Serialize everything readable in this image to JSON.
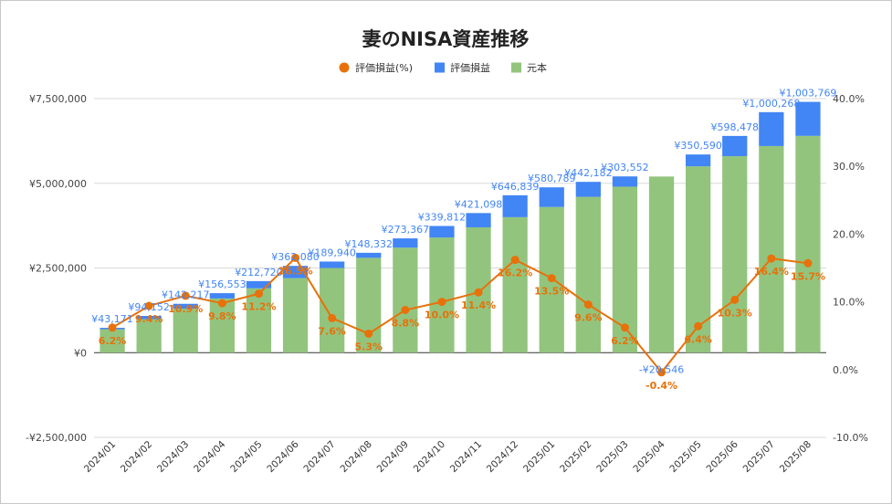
{
  "chart_data": {
    "type": "bar",
    "title": "妻のNISA資産推移",
    "categories": [
      "2024/01",
      "2024/02",
      "2024/03",
      "2024/04",
      "2024/05",
      "2024/06",
      "2024/07",
      "2024/08",
      "2024/09",
      "2024/10",
      "2024/11",
      "2024/12",
      "2025/01",
      "2025/02",
      "2025/03",
      "2025/04",
      "2025/05",
      "2025/06",
      "2025/07",
      "2025/08"
    ],
    "series": [
      {
        "name": "元本",
        "type": "stacked-bar",
        "color": "#93c47d",
        "values": [
          690000,
          990000,
          1300000,
          1600000,
          1900000,
          2200000,
          2500000,
          2800000,
          3100000,
          3400000,
          3700000,
          4000000,
          4300000,
          4600000,
          4900000,
          5200000,
          5500000,
          5800000,
          6100000,
          6400000
        ]
      },
      {
        "name": "評価損益",
        "type": "stacked-bar",
        "color": "#4285f4",
        "values": [
          43171,
          94152,
          142217,
          156553,
          212720,
          362080,
          189940,
          148332,
          273367,
          339812,
          421098,
          646839,
          580789,
          442182,
          303552,
          -20546,
          350590,
          598478,
          1000268,
          1003769
        ],
        "labels": [
          "¥43,171",
          "¥94,152",
          "¥142,217",
          "¥156,553",
          "¥212,720",
          "¥362,080",
          "¥189,940",
          "¥148,332",
          "¥273,367",
          "¥339,812",
          "¥421,098",
          "¥646,839",
          "¥580,789",
          "¥442,182",
          "¥303,552",
          "-¥20,546",
          "¥350,590",
          "¥598,478",
          "¥1,000,268",
          "¥1,003,769"
        ]
      },
      {
        "name": "評価損益(%)",
        "type": "line",
        "axis": "right",
        "color": "#e8710a",
        "values": [
          6.2,
          9.4,
          10.9,
          9.8,
          11.2,
          16.5,
          7.6,
          5.3,
          8.8,
          10.0,
          11.4,
          16.2,
          13.5,
          9.6,
          6.2,
          -0.4,
          6.4,
          10.3,
          16.4,
          15.7
        ],
        "labels": [
          "6.2%",
          "9.4%",
          "10.9%",
          "9.8%",
          "11.2%",
          "16.5%",
          "7.6%",
          "5.3%",
          "8.8%",
          "10.0%",
          "11.4%",
          "16.2%",
          "13.5%",
          "9.6%",
          "6.2%",
          "-0.4%",
          "6.4%",
          "10.3%",
          "16.4%",
          "15.7%"
        ]
      }
    ],
    "y_left": {
      "range": [
        -2500000,
        7500000
      ],
      "ticks": [
        -2500000,
        0,
        2500000,
        5000000,
        7500000
      ],
      "tick_labels": [
        "-¥2,500,000",
        "¥0",
        "¥2,500,000",
        "¥5,000,000",
        "¥7,500,000"
      ]
    },
    "y_right": {
      "range": [
        -10,
        40
      ],
      "ticks": [
        -10,
        0,
        10,
        20,
        30,
        40
      ],
      "tick_labels": [
        "-10.0%",
        "0.0%",
        "10.0%",
        "20.0%",
        "30.0%",
        "40.0%"
      ]
    },
    "legend": {
      "position": "top",
      "items": [
        {
          "label": "評価損益(%)",
          "marker": "circle",
          "color": "#e8710a"
        },
        {
          "label": "評価損益",
          "marker": "square",
          "color": "#4285f4"
        },
        {
          "label": "元本",
          "marker": "square",
          "color": "#93c47d"
        }
      ]
    },
    "grid": true
  }
}
